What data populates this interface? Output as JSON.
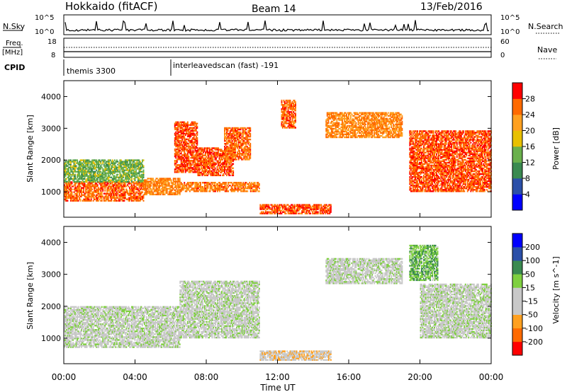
{
  "header": {
    "station": "Hokkaido (fitACF)",
    "beam": "Beam 14",
    "date": "13/Feb/2016"
  },
  "top_panels": {
    "nsky_label": "N.Sky",
    "nsky_ticks": [
      "10^5",
      "10^0"
    ],
    "nsky_right_ticks": [
      "10^5",
      "10^0"
    ],
    "nsearch_label": "N.Search",
    "freq_label_1": "Freq.",
    "freq_label_2": "[MHz]",
    "freq_ticks": [
      "18",
      "8"
    ],
    "nave_ticks": [
      "60",
      "0"
    ],
    "nave_label": "Nave",
    "cpid_label": "CPID",
    "cpid_entries": [
      {
        "text": "themis 3300",
        "start_hour": 0
      },
      {
        "text": "interleavedscan (fast) -191",
        "start_hour": 6
      }
    ]
  },
  "colors": {
    "power": [
      "#0000ff",
      "#2b4fa8",
      "#3a8a50",
      "#6ab04c",
      "#e8c000",
      "#ffa020",
      "#ff6a00",
      "#ff0000"
    ],
    "velocity": [
      "#ff0000",
      "#ff6a00",
      "#ffa020",
      "#c8c8c8",
      "#c8c8c8",
      "#7fd040",
      "#3a8a50",
      "#2b4fa8",
      "#0000ff"
    ]
  },
  "chart_data": [
    {
      "type": "heatmap",
      "panel": "power",
      "ylabel": "Slant Range [km]",
      "yticks": [
        "1000",
        "2000",
        "3000",
        "4000"
      ],
      "ylim": [
        200,
        4500
      ],
      "colorbar_label": "Power [dB]",
      "colorbar_ticks": [
        "4",
        "8",
        "12",
        "16",
        "20",
        "24",
        "28"
      ],
      "colorbar_range": [
        0,
        32
      ],
      "regions": [
        {
          "t0": 0.0,
          "t1": 4.5,
          "r0": 700,
          "r1": 1300,
          "value": 26
        },
        {
          "t0": 0.0,
          "t1": 4.5,
          "r0": 1300,
          "r1": 2000,
          "value": 14
        },
        {
          "t0": 4.5,
          "t1": 6.5,
          "r0": 900,
          "r1": 1400,
          "value": 24
        },
        {
          "t0": 6.2,
          "t1": 7.5,
          "r0": 1600,
          "r1": 3200,
          "value": 27
        },
        {
          "t0": 7.5,
          "t1": 9.5,
          "r0": 1500,
          "r1": 2400,
          "value": 27
        },
        {
          "t0": 9.0,
          "t1": 10.5,
          "r0": 2000,
          "r1": 3000,
          "value": 26
        },
        {
          "t0": 6.5,
          "t1": 11.0,
          "r0": 1000,
          "r1": 1300,
          "value": 25
        },
        {
          "t0": 11.0,
          "t1": 15.0,
          "r0": 300,
          "r1": 600,
          "value": 27
        },
        {
          "t0": 12.2,
          "t1": 13.0,
          "r0": 3000,
          "r1": 3900,
          "value": 26
        },
        {
          "t0": 14.7,
          "t1": 19.0,
          "r0": 2700,
          "r1": 3500,
          "value": 24
        },
        {
          "t0": 19.4,
          "t1": 24.0,
          "r0": 1000,
          "r1": 2900,
          "value": 27
        }
      ]
    },
    {
      "type": "heatmap",
      "panel": "velocity",
      "xlabel": "Time UT",
      "ylabel": "Slant Range [km]",
      "xticks": [
        "00:00",
        "04:00",
        "08:00",
        "12:00",
        "16:00",
        "20:00",
        "00:00"
      ],
      "xlim": [
        0,
        24
      ],
      "yticks": [
        "1000",
        "2000",
        "3000",
        "4000"
      ],
      "ylim": [
        200,
        4500
      ],
      "colorbar_label": "Velocity [m s^-1]",
      "colorbar_ticks": [
        "200",
        "100",
        "50",
        "15",
        "-15",
        "-50",
        "-100",
        "-200"
      ],
      "colorbar_range": [
        -250,
        250
      ],
      "regions": [
        {
          "t0": 0.0,
          "t1": 6.5,
          "r0": 700,
          "r1": 2000,
          "value": 0
        },
        {
          "t0": 6.5,
          "t1": 11.0,
          "r0": 1000,
          "r1": 2800,
          "value": 0
        },
        {
          "t0": 11.0,
          "t1": 15.0,
          "r0": 300,
          "r1": 600,
          "value": -60
        },
        {
          "t0": 14.7,
          "t1": 19.0,
          "r0": 2700,
          "r1": 3500,
          "value": 0
        },
        {
          "t0": 19.4,
          "t1": 21.0,
          "r0": 2800,
          "r1": 3900,
          "value": 70
        },
        {
          "t0": 20.0,
          "t1": 24.0,
          "r0": 1000,
          "r1": 2700,
          "value": 0
        }
      ]
    }
  ]
}
